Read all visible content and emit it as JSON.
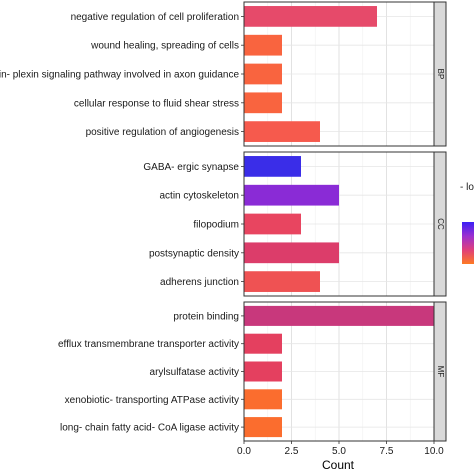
{
  "chart_data": {
    "type": "bar",
    "orientation": "horizontal",
    "xlabel": "Count",
    "xlim": [
      0,
      10
    ],
    "x_ticks": [
      "0.0",
      "2.5",
      "5.0",
      "7.5",
      "10.0"
    ],
    "x_tick_values": [
      0,
      2.5,
      5,
      7.5,
      10
    ],
    "grid": true,
    "facets": [
      {
        "label": "BP",
        "categories": [
          "negative regulation of cell proliferation",
          "wound healing, spreading of cells",
          "semaphorin- plexin signaling pathway involved in axon guidance",
          "cellular response to fluid shear stress",
          "positive regulation of angiogenesis"
        ],
        "values": [
          7,
          2,
          2,
          2,
          4
        ],
        "colors": [
          "#e64a6a",
          "#f9643f",
          "#f9643f",
          "#f9643f",
          "#f65a4d"
        ]
      },
      {
        "label": "CC",
        "categories": [
          "GABA- ergic synapse",
          "actin cytoskeleton",
          "filopodium",
          "postsynaptic density",
          "adherens junction"
        ],
        "values": [
          3,
          5,
          3,
          5,
          4
        ],
        "colors": [
          "#3a2de8",
          "#8a2bd6",
          "#e84560",
          "#dc3d6a",
          "#ef5253"
        ]
      },
      {
        "label": "MF",
        "categories": [
          "protein binding",
          "efflux transmembrane transporter activity",
          "arylsulfatase activity",
          "xenobiotic- transporting ATPase activity",
          "long- chain fatty acid- CoA ligase activity"
        ],
        "values": [
          10,
          2,
          2,
          2,
          2
        ],
        "colors": [
          "#c8387c",
          "#e4405f",
          "#e4405f",
          "#fb6d2e",
          "#fb6d2e"
        ]
      }
    ],
    "legend": {
      "title": "- lo",
      "placement": "right",
      "gradient": [
        "#3b1ff5",
        "#9b2fd0",
        "#e0407a",
        "#fd7a24"
      ]
    }
  }
}
